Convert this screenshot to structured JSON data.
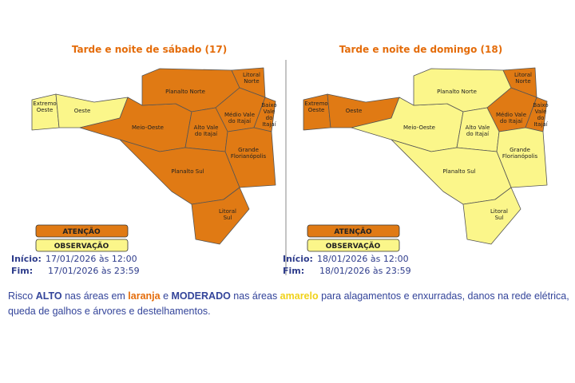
{
  "maps": [
    {
      "title": "Tarde e noite de sábado (17)",
      "regions": [
        {
          "lines": [
            "Extremo",
            "Oeste"
          ],
          "color": "#fbf68a"
        },
        {
          "lines": [
            "Oeste"
          ],
          "color": "#fbf68a"
        },
        {
          "lines": [
            "Meio-Oeste"
          ],
          "color": "#e07a14"
        },
        {
          "lines": [
            "Planalto Norte"
          ],
          "color": "#e07a14"
        },
        {
          "lines": [
            "Litoral",
            "Norte"
          ],
          "color": "#e07a14"
        },
        {
          "lines": [
            "Médio Vale",
            "do Itajaí"
          ],
          "color": "#e07a14"
        },
        {
          "lines": [
            "Baixo",
            "Vale",
            "do",
            "Itajaí"
          ],
          "color": "#e07a14"
        },
        {
          "lines": [
            "Alto Vale",
            "do Itajaí"
          ],
          "color": "#e07a14"
        },
        {
          "lines": [
            "Grande",
            "Florianópolis"
          ],
          "color": "#e07a14"
        },
        {
          "lines": [
            "Planalto Sul"
          ],
          "color": "#e07a14"
        },
        {
          "lines": [
            "Litoral",
            "Sul"
          ],
          "color": "#e07a14"
        }
      ],
      "legend": [
        {
          "label": "ATENÇÃO",
          "color": "#e07a14"
        },
        {
          "label": "OBSERVAÇÃO",
          "color": "#fbf68a"
        }
      ],
      "start_label": "Início:",
      "start": "17/01/2026 às 12:00",
      "end_label": "Fim:",
      "end": "17/01/2026 às 23:59"
    },
    {
      "title": "Tarde e noite de domingo (18)",
      "regions": [
        {
          "lines": [
            "Extremo",
            "Oeste"
          ],
          "color": "#e07a14"
        },
        {
          "lines": [
            "Oeste"
          ],
          "color": "#e07a14"
        },
        {
          "lines": [
            "Meio-Oeste"
          ],
          "color": "#fbf68a"
        },
        {
          "lines": [
            "Planalto Norte"
          ],
          "color": "#fbf68a"
        },
        {
          "lines": [
            "Litoral",
            "Norte"
          ],
          "color": "#e07a14"
        },
        {
          "lines": [
            "Médio Vale",
            "do Itajaí"
          ],
          "color": "#e07a14"
        },
        {
          "lines": [
            "Baixo",
            "Vale",
            "do",
            "Itajaí"
          ],
          "color": "#e07a14"
        },
        {
          "lines": [
            "Alto Vale",
            "do Itajaí"
          ],
          "color": "#fbf68a"
        },
        {
          "lines": [
            "Grande",
            "Florianópolis"
          ],
          "color": "#fbf68a"
        },
        {
          "lines": [
            "Planalto Sul"
          ],
          "color": "#fbf68a"
        },
        {
          "lines": [
            "Litoral",
            "Sul"
          ],
          "color": "#fbf68a"
        }
      ],
      "legend": [
        {
          "label": "ATENÇÃO",
          "color": "#e07a14"
        },
        {
          "label": "OBSERVAÇÃO",
          "color": "#fbf68a"
        }
      ],
      "start_label": "Início:",
      "start": "18/01/2026 às 12:00",
      "end_label": "Fim:",
      "end": "18/01/2026 às 23:59"
    }
  ],
  "description": [
    "Risco ",
    "ALTO",
    " nas áreas em ",
    "laranja",
    " e ",
    "MODERADO",
    " nas áreas ",
    "amarelo",
    " para alagamentos e enxurradas, danos na rede elétrica, queda de galhos e árvores e destelhamentos."
  ]
}
